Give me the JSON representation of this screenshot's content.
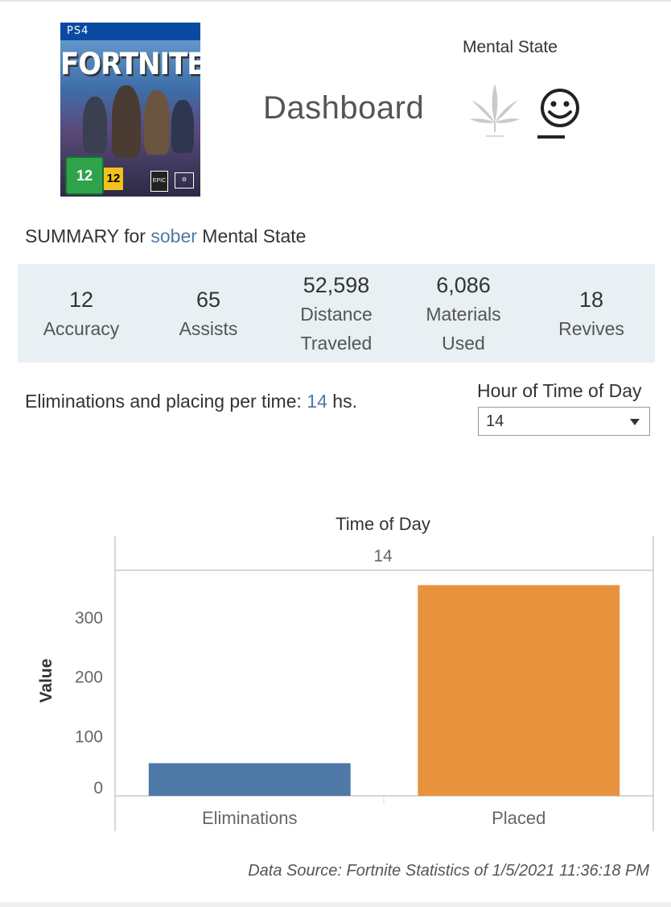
{
  "header": {
    "title": "Dashboard",
    "mental_state_label": "Mental State",
    "icons": [
      "cannabis-leaf-icon",
      "smiley-face-icon"
    ]
  },
  "cover": {
    "platform": "PS4",
    "game_title": "FORTNITE",
    "usk_rating": "12",
    "pegi_rating": "12",
    "publisher": "EPIC"
  },
  "summary": {
    "prefix": "SUMMARY for",
    "state": "sober",
    "suffix": "Mental State"
  },
  "kpis": [
    {
      "value": "12",
      "label": "Accuracy"
    },
    {
      "value": "65",
      "label": "Assists"
    },
    {
      "value": "52,598",
      "label": "Distance Traveled"
    },
    {
      "value": "6,086",
      "label": "Materials Used"
    },
    {
      "value": "18",
      "label": "Revives"
    }
  ],
  "elims": {
    "prefix": "Eliminations and placing per time:",
    "hour": "14",
    "suffix": "hs."
  },
  "filter": {
    "label": "Hour of Time of Day",
    "selected": "14"
  },
  "chart_data": {
    "type": "bar",
    "title": "Time of Day",
    "column_header": "14",
    "categories": [
      "Eliminations",
      "Placed"
    ],
    "values": [
      55,
      355
    ],
    "colors": [
      "#4e79a7",
      "#e8923e"
    ],
    "ylabel": "Value",
    "ylim": [
      0,
      380
    ],
    "yticks": [
      0,
      100,
      200,
      300
    ],
    "grid": false
  },
  "footer": {
    "source": "Data Source: Fortnite Statistics of 1/5/2021 11:36:18 PM"
  },
  "colors": {
    "accent": "#4e79a7",
    "band": "#e8f0f3"
  }
}
